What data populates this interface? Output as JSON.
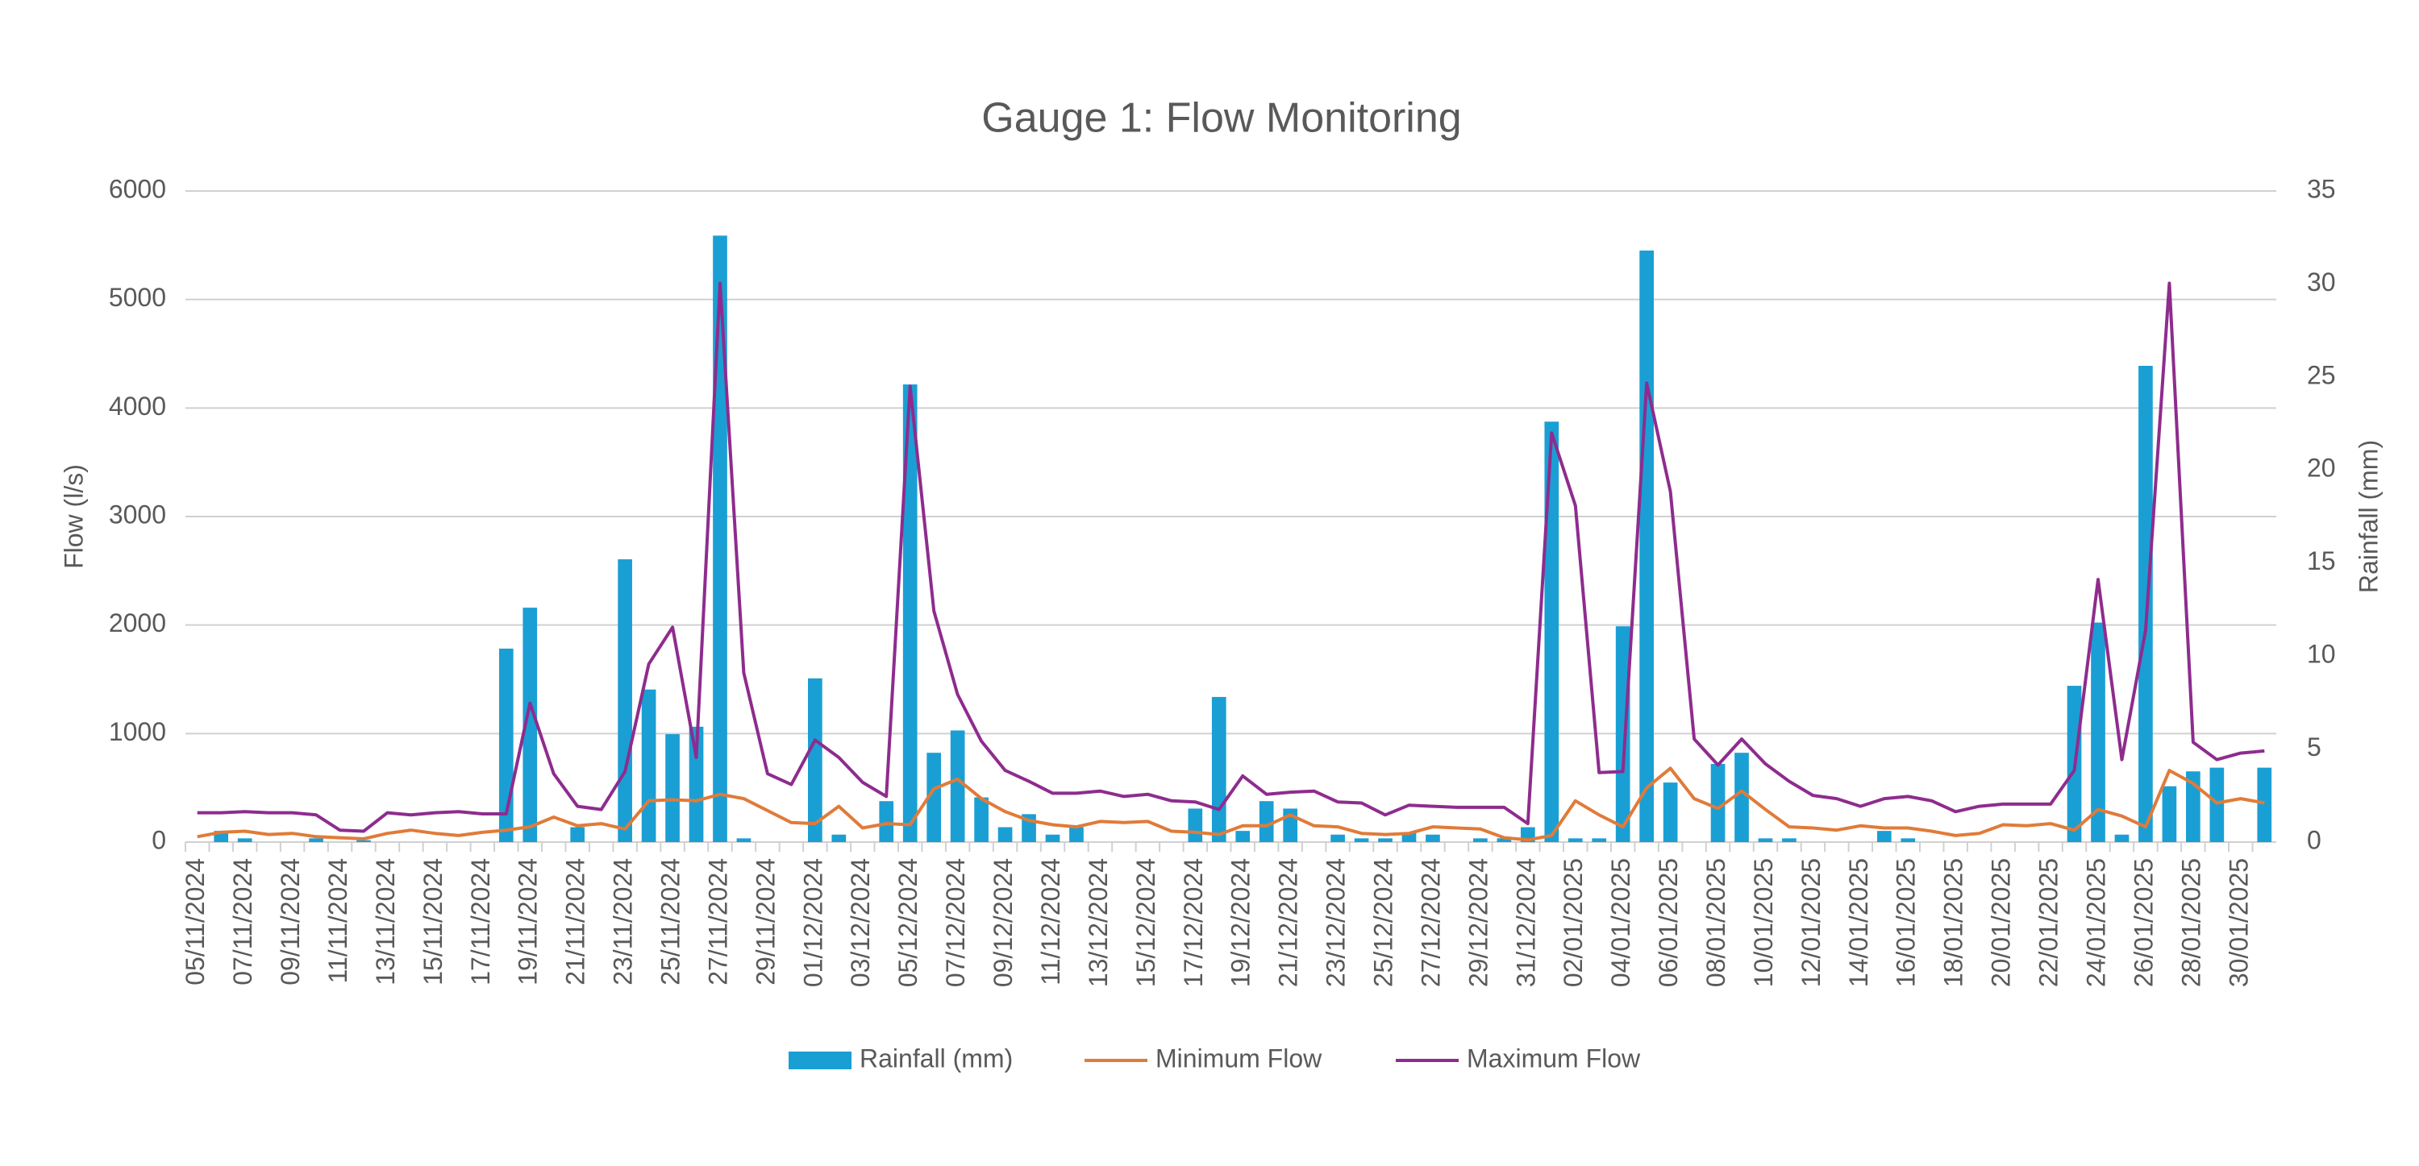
{
  "chart_data": {
    "type": "bar",
    "title": "Gauge 1: Flow Monitoring",
    "y_label": "Flow (l/s)",
    "y2_label": "Rainfall (mm)",
    "categories": [
      "05/11/2024",
      null,
      "07/11/2024",
      null,
      "09/11/2024",
      null,
      "11/11/2024",
      null,
      "13/11/2024",
      null,
      "15/11/2024",
      null,
      "17/11/2024",
      null,
      "19/11/2024",
      null,
      "21/11/2024",
      null,
      "23/11/2024",
      null,
      "25/11/2024",
      null,
      "27/11/2024",
      null,
      "29/11/2024",
      null,
      "01/12/2024",
      null,
      "03/12/2024",
      null,
      "05/12/2024",
      null,
      "07/12/2024",
      null,
      "09/12/2024",
      null,
      "11/12/2024",
      null,
      "13/12/2024",
      null,
      "15/12/2024",
      null,
      "17/12/2024",
      null,
      "19/12/2024",
      null,
      "21/12/2024",
      null,
      "23/12/2024",
      null,
      "25/12/2024",
      null,
      "27/12/2024",
      null,
      "29/12/2024",
      null,
      "31/12/2024",
      null,
      "02/01/2025",
      null,
      "04/01/2025",
      null,
      "06/01/2025",
      null,
      "08/01/2025",
      null,
      "10/01/2025",
      null,
      "12/01/2025",
      null,
      "14/01/2025",
      null,
      "16/01/2025",
      null,
      "18/01/2025",
      null,
      "20/01/2025",
      null,
      "22/01/2025",
      null,
      "24/01/2025",
      null,
      "26/01/2025",
      null,
      "28/01/2025",
      null,
      "30/01/2025",
      null
    ],
    "series": [
      {
        "name": "Rainfall (mm)",
        "type": "bar",
        "axis": "y2",
        "color": "#1a9fd4",
        "values": [
          0,
          0.6,
          0.2,
          0,
          0,
          0.2,
          0,
          0.1,
          0,
          0,
          0,
          0,
          0,
          10.4,
          12.6,
          0,
          0.8,
          0,
          15.2,
          8.2,
          5.8,
          6.2,
          32.6,
          0.2,
          0,
          0,
          8.8,
          0.4,
          0,
          2.2,
          24.6,
          4.8,
          6.0,
          2.4,
          0.8,
          1.5,
          0.4,
          0.8,
          0,
          0,
          0,
          0,
          1.8,
          7.8,
          0.6,
          2.2,
          1.8,
          0,
          0.4,
          0.2,
          0.2,
          0.5,
          0.4,
          0,
          0.2,
          0.2,
          0.8,
          22.6,
          0.2,
          0.2,
          11.6,
          31.8,
          3.2,
          0,
          4.2,
          4.8,
          0.2,
          0.2,
          0,
          0,
          0,
          0.6,
          0.2,
          0,
          0,
          0,
          0,
          0,
          0,
          8.4,
          11.8,
          0.4,
          25.6,
          3.0,
          3.8,
          4.0,
          0,
          4.0
        ]
      },
      {
        "name": "Minimum Flow",
        "type": "line",
        "color": "#e07b39",
        "values": [
          50,
          90,
          100,
          70,
          80,
          50,
          40,
          30,
          80,
          110,
          80,
          60,
          90,
          110,
          140,
          230,
          150,
          170,
          120,
          380,
          390,
          380,
          440,
          400,
          290,
          180,
          170,
          330,
          130,
          170,
          160,
          490,
          580,
          400,
          280,
          200,
          160,
          140,
          190,
          180,
          190,
          100,
          90,
          70,
          150,
          150,
          250,
          150,
          140,
          80,
          70,
          80,
          140,
          130,
          120,
          40,
          20,
          60,
          380,
          250,
          140,
          500,
          680,
          400,
          310,
          470,
          300,
          140,
          130,
          110,
          150,
          130,
          130,
          100,
          60,
          80,
          160,
          150,
          170,
          110,
          300,
          240,
          140,
          660,
          540,
          360,
          400,
          360
        ]
      },
      {
        "name": "Maximum Flow",
        "type": "line",
        "color": "#8e2c8e",
        "values": [
          270,
          270,
          280,
          270,
          270,
          250,
          110,
          100,
          270,
          250,
          270,
          280,
          260,
          260,
          1280,
          630,
          330,
          300,
          650,
          1640,
          1980,
          780,
          5150,
          1560,
          630,
          530,
          940,
          780,
          550,
          420,
          4200,
          2130,
          1360,
          930,
          660,
          560,
          450,
          450,
          470,
          420,
          440,
          380,
          370,
          300,
          610,
          440,
          460,
          470,
          370,
          360,
          250,
          340,
          330,
          320,
          320,
          320,
          170,
          3770,
          3100,
          640,
          650,
          4230,
          3230,
          950,
          710,
          950,
          720,
          560,
          430,
          400,
          330,
          400,
          420,
          380,
          280,
          330,
          350,
          350,
          350,
          660,
          2420,
          760,
          1950,
          5150,
          920,
          760,
          820,
          840
        ]
      }
    ],
    "ylim": [
      0,
      6000
    ],
    "yticks": [
      0,
      1000,
      2000,
      3000,
      4000,
      5000,
      6000
    ],
    "y2lim": [
      0,
      35
    ],
    "y2ticks": [
      0,
      5,
      10,
      15,
      20,
      25,
      30,
      35
    ],
    "grid": true,
    "legend": "bottom"
  }
}
